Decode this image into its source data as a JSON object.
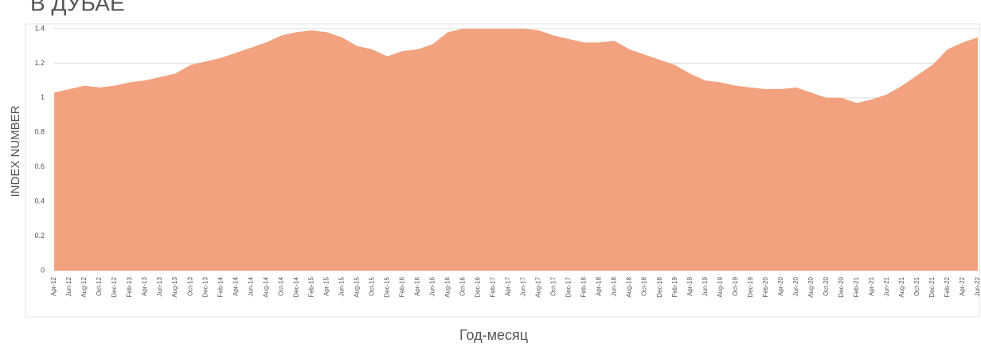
{
  "chart_data": {
    "type": "area",
    "title": "В ДУБАЕ",
    "ylabel": "INDEX NUMBER",
    "xlabel": "Год-месяц",
    "color": "#f2a27f",
    "categories": [
      "Apr-12",
      "Jun-12",
      "Aug-12",
      "Oct-12",
      "Dec-12",
      "Feb-13",
      "Apr-13",
      "Jun-13",
      "Aug-13",
      "Oct-13",
      "Dec-13",
      "Feb-14",
      "Apr-14",
      "Jun-14",
      "Aug-14",
      "Oct-14",
      "Dec-14",
      "Feb-15",
      "Apr-15",
      "Jun-15",
      "Aug-15",
      "Oct-15",
      "Dec-15",
      "Feb-16",
      "Apr-16",
      "Jun-16",
      "Aug-16",
      "Oct-16",
      "Dec-16",
      "Feb-17",
      "Apr-17",
      "Jun-17",
      "Aug-17",
      "Oct-17",
      "Dec-17",
      "Feb-18",
      "Apr-18",
      "Jun-18",
      "Aug-18",
      "Oct-18",
      "Dec-18",
      "Feb-19",
      "Apr-19",
      "Jun-19",
      "Aug-19",
      "Oct-19",
      "Dec-19",
      "Feb-20",
      "Apr-20",
      "Jun-20",
      "Aug-20",
      "Oct-20",
      "Dec-20",
      "Feb-21",
      "Apr-21",
      "Jun-21",
      "Aug-21",
      "Oct-21",
      "Dec-21",
      "Feb-22",
      "Apr-22",
      "Jun-22"
    ],
    "values": [
      1.03,
      1.05,
      1.07,
      1.06,
      1.07,
      1.09,
      1.1,
      1.12,
      1.14,
      1.19,
      1.21,
      1.23,
      1.26,
      1.29,
      1.32,
      1.36,
      1.38,
      1.39,
      1.38,
      1.35,
      1.3,
      1.28,
      1.24,
      1.27,
      1.28,
      1.31,
      1.38,
      1.4,
      1.4,
      1.4,
      1.4,
      1.4,
      1.39,
      1.36,
      1.34,
      1.32,
      1.32,
      1.33,
      1.28,
      1.25,
      1.22,
      1.19,
      1.14,
      1.1,
      1.09,
      1.07,
      1.06,
      1.05,
      1.05,
      1.06,
      1.03,
      1.0,
      1.0,
      0.97,
      0.99,
      1.02,
      1.07,
      1.13,
      1.19,
      1.28,
      1.32,
      1.35
    ],
    "ylim": [
      0,
      1.4
    ],
    "yticks": [
      0,
      0.2,
      0.4,
      0.6,
      0.8,
      1,
      1.2,
      1.4
    ],
    "grid": true
  }
}
